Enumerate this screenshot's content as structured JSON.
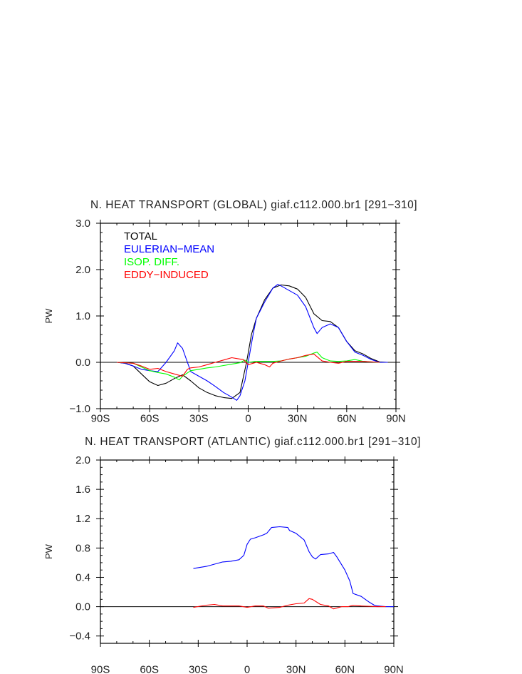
{
  "chart_data": [
    {
      "type": "line",
      "title": "N. HEAT TRANSPORT (GLOBAL) giaf.c112.000.br1 [291−310]",
      "xlabel": "",
      "ylabel": "PW",
      "xlim": [
        -90,
        90
      ],
      "ylim": [
        -1.0,
        3.0
      ],
      "xticks": [
        -90,
        -60,
        -30,
        0,
        30,
        60,
        90
      ],
      "xtick_labels": [
        "90S",
        "60S",
        "30S",
        "0",
        "30N",
        "60N",
        "90N"
      ],
      "yticks": [
        -1.0,
        0.0,
        1.0,
        2.0,
        3.0
      ],
      "ytick_labels": [
        "−1.0",
        "0.0",
        "1.0",
        "2.0",
        "3.0"
      ],
      "grid": false,
      "zero_line": true,
      "legend_placement": "top-left",
      "series": [
        {
          "name": "TOTAL",
          "color": "#000000",
          "x": [
            -80,
            -75,
            -70,
            -65,
            -60,
            -55,
            -50,
            -45,
            -40,
            -35,
            -30,
            -25,
            -20,
            -15,
            -10,
            -5,
            -1,
            2,
            5,
            10,
            15,
            20,
            25,
            30,
            35,
            40,
            45,
            50,
            55,
            60,
            65,
            70,
            75,
            80,
            85
          ],
          "y": [
            0,
            -0.02,
            -0.08,
            -0.25,
            -0.42,
            -0.5,
            -0.45,
            -0.35,
            -0.27,
            -0.4,
            -0.55,
            -0.65,
            -0.72,
            -0.76,
            -0.78,
            -0.65,
            0,
            0.6,
            0.95,
            1.35,
            1.6,
            1.67,
            1.65,
            1.58,
            1.4,
            1.05,
            0.9,
            0.88,
            0.75,
            0.45,
            0.25,
            0.18,
            0.08,
            0.01,
            0
          ]
        },
        {
          "name": "EULERIAN−MEAN",
          "color": "#0000ff",
          "x": [
            -80,
            -75,
            -70,
            -65,
            -60,
            -55,
            -50,
            -45,
            -43,
            -40,
            -38,
            -35,
            -30,
            -25,
            -20,
            -15,
            -10,
            -7,
            -5,
            -2,
            0,
            3,
            5,
            10,
            15,
            18,
            20,
            25,
            30,
            35,
            40,
            42,
            45,
            50,
            55,
            60,
            65,
            70,
            75,
            80,
            85
          ],
          "y": [
            0,
            -0.02,
            -0.08,
            -0.15,
            -0.18,
            -0.2,
            0,
            0.25,
            0.42,
            0.3,
            0.1,
            -0.2,
            -0.3,
            -0.4,
            -0.52,
            -0.65,
            -0.75,
            -0.82,
            -0.72,
            -0.4,
            0,
            0.6,
            0.95,
            1.3,
            1.6,
            1.68,
            1.65,
            1.55,
            1.45,
            1.2,
            0.75,
            0.62,
            0.75,
            0.83,
            0.75,
            0.45,
            0.22,
            0.15,
            0.06,
            0,
            0
          ]
        },
        {
          "name": "ISOP. DIFF.",
          "color": "#00ff00",
          "x": [
            -80,
            -70,
            -65,
            -60,
            -55,
            -50,
            -45,
            -42,
            -40,
            -35,
            -30,
            -25,
            -20,
            -15,
            -10,
            -5,
            -2,
            0,
            5,
            10,
            15,
            20,
            25,
            30,
            35,
            40,
            42,
            45,
            50,
            55,
            60,
            65,
            70,
            75,
            80
          ],
          "y": [
            0,
            -0.02,
            -0.1,
            -0.18,
            -0.22,
            -0.25,
            -0.32,
            -0.38,
            -0.3,
            -0.18,
            -0.15,
            -0.12,
            -0.1,
            -0.07,
            -0.04,
            -0.01,
            0.05,
            0,
            0.02,
            0.02,
            0.02,
            0.03,
            0.07,
            0.1,
            0.13,
            0.2,
            0.22,
            0.1,
            0.03,
            0.02,
            0.03,
            0.06,
            0.02,
            0.01,
            0
          ]
        },
        {
          "name": "EDDY−INDUCED",
          "color": "#ff0000",
          "x": [
            -80,
            -70,
            -65,
            -60,
            -55,
            -50,
            -45,
            -40,
            -37,
            -35,
            -30,
            -25,
            -20,
            -15,
            -10,
            -5,
            -3,
            0,
            5,
            10,
            13,
            15,
            20,
            25,
            30,
            35,
            40,
            45,
            50,
            55,
            60,
            65,
            70,
            80
          ],
          "y": [
            0,
            -0.02,
            -0.08,
            -0.15,
            -0.13,
            -0.2,
            -0.25,
            -0.3,
            -0.15,
            -0.12,
            -0.1,
            -0.05,
            0,
            0.05,
            0.1,
            0.07,
            0.06,
            -0.05,
            0,
            -0.05,
            -0.1,
            -0.02,
            0.03,
            0.07,
            0.1,
            0.15,
            0.18,
            0.03,
            0,
            -0.02,
            0.02,
            0.02,
            0.02,
            0
          ]
        }
      ]
    },
    {
      "type": "line",
      "title": "N. HEAT TRANSPORT (ATLANTIC) giaf.c112.000.br1 [291−310]",
      "xlabel": "",
      "ylabel": "PW",
      "xlim": [
        -90,
        90
      ],
      "ylim": [
        -0.5,
        2.0
      ],
      "xticks": [
        -90,
        -60,
        -30,
        0,
        30,
        60,
        90
      ],
      "xtick_labels": [
        "90S",
        "60S",
        "30S",
        "0",
        "30N",
        "60N",
        "90N"
      ],
      "yticks": [
        -0.4,
        0.0,
        0.4,
        0.8,
        1.2,
        1.6,
        2.0
      ],
      "ytick_labels": [
        "−0.4",
        "0.0",
        "0.4",
        "0.8",
        "1.2",
        "1.6",
        "2.0"
      ],
      "grid": false,
      "zero_line": true,
      "series": [
        {
          "color": "#0000ff",
          "x": [
            -33,
            -25,
            -20,
            -15,
            -10,
            -5,
            -2,
            0,
            2,
            5,
            10,
            12,
            15,
            20,
            25,
            26,
            30,
            35,
            38,
            40,
            42,
            45,
            50,
            53,
            55,
            60,
            63,
            65,
            70,
            75,
            78,
            80,
            85,
            90
          ],
          "y": [
            0.52,
            0.55,
            0.58,
            0.61,
            0.62,
            0.64,
            0.7,
            0.85,
            0.92,
            0.94,
            0.98,
            1.0,
            1.08,
            1.09,
            1.08,
            1.04,
            1.0,
            0.91,
            0.75,
            0.68,
            0.65,
            0.71,
            0.72,
            0.74,
            0.68,
            0.5,
            0.35,
            0.18,
            0.14,
            0.06,
            0.02,
            0.01,
            0,
            0
          ]
        },
        {
          "color": "#ff0000",
          "x": [
            -33,
            -25,
            -20,
            -15,
            -5,
            0,
            5,
            10,
            13,
            20,
            25,
            30,
            35,
            38,
            40,
            45,
            50,
            53,
            58,
            62,
            65,
            70,
            80,
            85
          ],
          "y": [
            -0.01,
            0.02,
            0.03,
            0.01,
            0.01,
            -0.01,
            0.01,
            0.01,
            -0.02,
            -0.01,
            0.02,
            0.04,
            0.05,
            0.11,
            0.1,
            0.03,
            0.01,
            -0.03,
            0,
            0,
            0.02,
            0.01,
            0,
            0
          ]
        }
      ]
    }
  ]
}
